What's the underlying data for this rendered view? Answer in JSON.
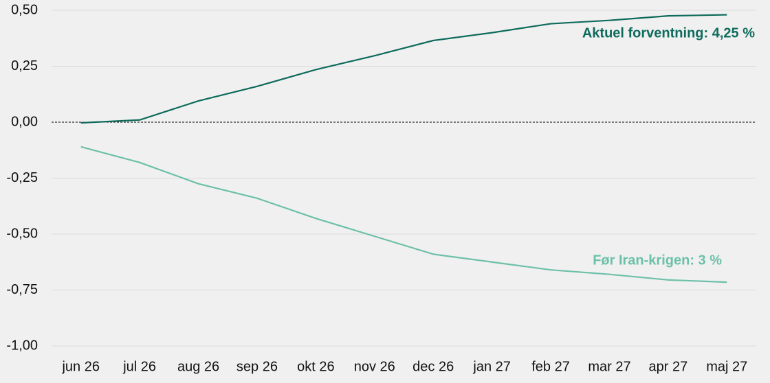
{
  "chart_data": {
    "type": "line",
    "categories": [
      "jun 26",
      "jul 26",
      "aug 26",
      "sep 26",
      "okt 26",
      "nov 26",
      "dec 26",
      "jan 27",
      "feb 27",
      "mar 27",
      "apr 27",
      "maj 27"
    ],
    "series": [
      {
        "name": "Aktuel forventning: 4,25 %",
        "color": "#0e6b5c",
        "values": [
          -0.003,
          0.01,
          0.095,
          0.16,
          0.235,
          0.297,
          0.365,
          0.4,
          0.44,
          0.455,
          0.475,
          0.48
        ]
      },
      {
        "name": "Før Iran-krigen: 3 %",
        "color": "#6cc0a8",
        "values": [
          -0.11,
          -0.18,
          -0.275,
          -0.34,
          -0.43,
          -0.51,
          -0.59,
          -0.625,
          -0.66,
          -0.68,
          -0.705,
          -0.715
        ]
      }
    ],
    "ylim": [
      -1,
      0.5
    ],
    "yticks": [
      {
        "value": -1,
        "label": "-1,00"
      },
      {
        "value": -0.75,
        "label": "-0,75"
      },
      {
        "value": -0.5,
        "label": "-0,50"
      },
      {
        "value": -0.25,
        "label": "-0,25"
      },
      {
        "value": 0,
        "label": "0,00"
      },
      {
        "value": 0.25,
        "label": "0,25"
      },
      {
        "value": 0.5,
        "label": "0,50"
      }
    ],
    "grid": true,
    "zero_line": true
  }
}
